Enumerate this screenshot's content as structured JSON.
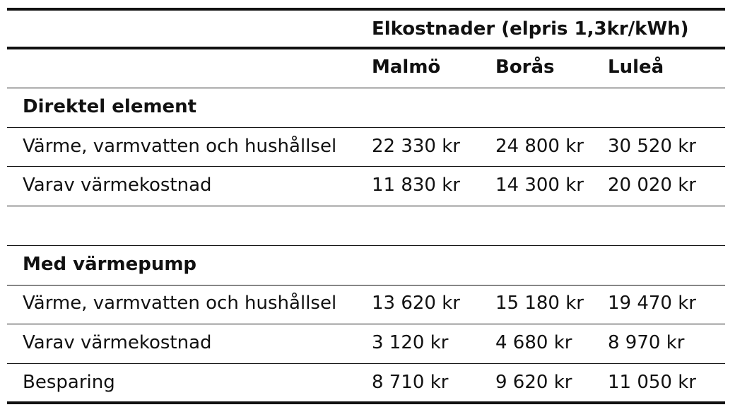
{
  "header": {
    "group_title": "Elkostnader (elpris 1,3kr/kWh)",
    "columns": [
      "Malmö",
      "Borås",
      "Luleå"
    ]
  },
  "sections": [
    {
      "title": "Direktel element",
      "rows": [
        {
          "label": "Värme, varmvatten och hushållsel",
          "values": [
            "22 330 kr",
            "24 800 kr",
            "30 520 kr"
          ]
        },
        {
          "label": "Varav värmekostnad",
          "values": [
            "11 830 kr",
            "14 300 kr",
            "20 020 kr"
          ]
        }
      ]
    },
    {
      "title": "Med värmepump",
      "rows": [
        {
          "label": "Värme, varmvatten och hushållsel",
          "values": [
            "13 620 kr",
            "15 180 kr",
            "19 470 kr"
          ]
        },
        {
          "label": "Varav värmekostnad",
          "values": [
            "3 120 kr",
            "4 680 kr",
            "8 970 kr"
          ]
        },
        {
          "label": "Besparing",
          "values": [
            "8 710 kr",
            "9 620 kr",
            "11 050 kr"
          ]
        }
      ]
    }
  ]
}
